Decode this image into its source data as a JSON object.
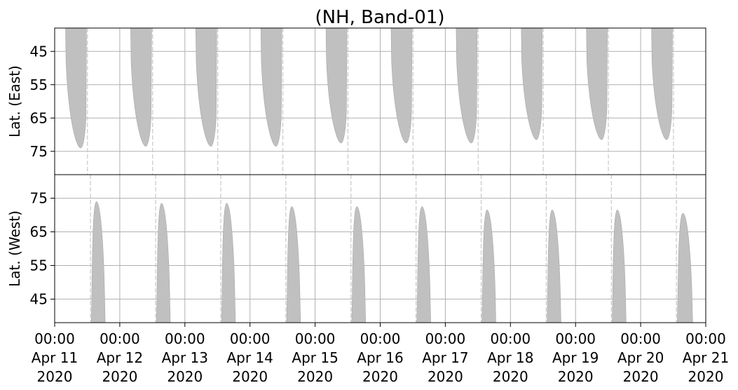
{
  "chart_data": {
    "type": "area",
    "title": "(NH, Band-01)",
    "grid": true,
    "fill_color": "#c0c0c0",
    "x": {
      "start": "2020-04-11T00:00",
      "end": "2020-04-21T00:00",
      "ticks": [
        {
          "time": "00:00",
          "date": "Apr 11",
          "year": "2020"
        },
        {
          "time": "00:00",
          "date": "Apr 12",
          "year": "2020"
        },
        {
          "time": "00:00",
          "date": "Apr 13",
          "year": "2020"
        },
        {
          "time": "00:00",
          "date": "Apr 14",
          "year": "2020"
        },
        {
          "time": "00:00",
          "date": "Apr 15",
          "year": "2020"
        },
        {
          "time": "00:00",
          "date": "Apr 16",
          "year": "2020"
        },
        {
          "time": "00:00",
          "date": "Apr 17",
          "year": "2020"
        },
        {
          "time": "00:00",
          "date": "Apr 18",
          "year": "2020"
        },
        {
          "time": "00:00",
          "date": "Apr 19",
          "year": "2020"
        },
        {
          "time": "00:00",
          "date": "Apr 20",
          "year": "2020"
        },
        {
          "time": "00:00",
          "date": "Apr 21",
          "year": "2020"
        }
      ]
    },
    "panels": [
      {
        "ylabel": "Lat. (East)",
        "ylim": [
          38,
          82
        ],
        "y_inverted": true,
        "yticks": [
          45,
          55,
          65,
          75
        ],
        "passes": [
          {
            "start": "2020-04-11T04:00",
            "end": "2020-04-11T13:00",
            "max_lat": 74
          },
          {
            "start": "2020-04-12T04:00",
            "end": "2020-04-12T13:00",
            "max_lat": 73.5
          },
          {
            "start": "2020-04-13T04:00",
            "end": "2020-04-13T13:00",
            "max_lat": 73.5
          },
          {
            "start": "2020-04-14T04:00",
            "end": "2020-04-14T13:00",
            "max_lat": 73.5
          },
          {
            "start": "2020-04-15T04:00",
            "end": "2020-04-15T13:00",
            "max_lat": 72.5
          },
          {
            "start": "2020-04-16T04:00",
            "end": "2020-04-16T13:00",
            "max_lat": 72.5
          },
          {
            "start": "2020-04-17T04:00",
            "end": "2020-04-17T13:00",
            "max_lat": 72.5
          },
          {
            "start": "2020-04-18T04:00",
            "end": "2020-04-18T13:00",
            "max_lat": 71.5
          },
          {
            "start": "2020-04-19T04:00",
            "end": "2020-04-19T13:00",
            "max_lat": 71.5
          },
          {
            "start": "2020-04-20T04:00",
            "end": "2020-04-20T13:00",
            "max_lat": 71.5
          }
        ]
      },
      {
        "ylabel": "Lat. (West)",
        "ylim": [
          38,
          82
        ],
        "y_inverted": false,
        "yticks": [
          45,
          55,
          65,
          75
        ],
        "passes": [
          {
            "start": "2020-04-11T13:30",
            "end": "2020-04-11T23:00",
            "max_lat": 74
          },
          {
            "start": "2020-04-12T13:30",
            "end": "2020-04-12T23:00",
            "max_lat": 73.5
          },
          {
            "start": "2020-04-13T13:30",
            "end": "2020-04-13T23:00",
            "max_lat": 73.5
          },
          {
            "start": "2020-04-14T13:30",
            "end": "2020-04-14T23:00",
            "max_lat": 72.5
          },
          {
            "start": "2020-04-15T13:30",
            "end": "2020-04-15T23:00",
            "max_lat": 72.5
          },
          {
            "start": "2020-04-16T13:30",
            "end": "2020-04-16T23:00",
            "max_lat": 72.5
          },
          {
            "start": "2020-04-17T13:30",
            "end": "2020-04-17T23:00",
            "max_lat": 71.5
          },
          {
            "start": "2020-04-18T13:30",
            "end": "2020-04-18T23:00",
            "max_lat": 71.5
          },
          {
            "start": "2020-04-19T13:30",
            "end": "2020-04-19T23:00",
            "max_lat": 71.5
          },
          {
            "start": "2020-04-20T13:30",
            "end": "2020-04-21T00:00",
            "max_lat": 70.5
          }
        ]
      }
    ]
  }
}
